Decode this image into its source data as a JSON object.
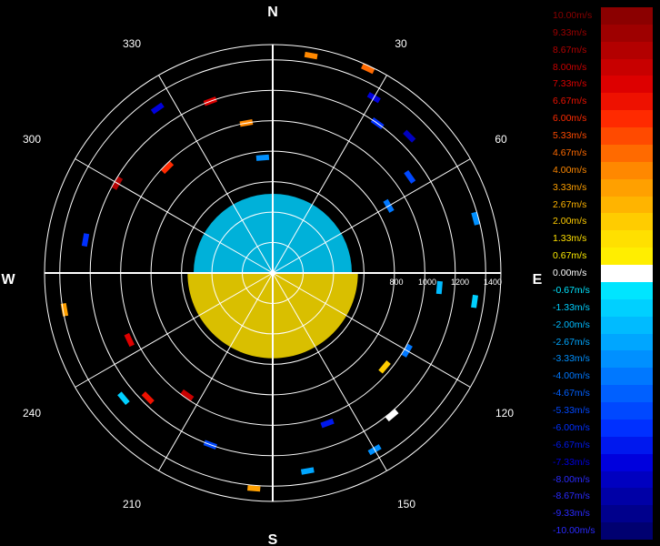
{
  "chart_data": {
    "type": "polar-ppi",
    "title": "",
    "compass_labels": {
      "north": "N",
      "south": "S",
      "east": "E",
      "west": "W"
    },
    "angle_labels": [
      "30",
      "60",
      "120",
      "150",
      "210",
      "240",
      "300",
      "330"
    ],
    "range_ticks": [
      "800",
      "1000",
      "1200",
      "1400"
    ],
    "range_max": 1500,
    "range_ring_step": 200,
    "legend": {
      "labels": [
        "10.00m/s",
        "9.33m/s",
        "8.67m/s",
        "8.00m/s",
        "7.33m/s",
        "6.67m/s",
        "6.00m/s",
        "5.33m/s",
        "4.67m/s",
        "4.00m/s",
        "3.33m/s",
        "2.67m/s",
        "2.00m/s",
        "1.33m/s",
        "0.67m/s",
        "0.00m/s",
        "-0.67m/s",
        "-1.33m/s",
        "-2.00m/s",
        "-2.67m/s",
        "-3.33m/s",
        "-4.00m/s",
        "-4.67m/s",
        "-5.33m/s",
        "-6.00m/s",
        "-6.67m/s",
        "-7.33m/s",
        "-8.00m/s",
        "-8.67m/s",
        "-9.33m/s",
        "-10.00m/s"
      ],
      "values": [
        10.0,
        9.33,
        8.67,
        8.0,
        7.33,
        6.67,
        6.0,
        5.33,
        4.67,
        4.0,
        3.33,
        2.67,
        2.0,
        1.33,
        0.67,
        0.0,
        -0.67,
        -1.33,
        -2.0,
        -2.67,
        -3.33,
        -4.0,
        -4.67,
        -5.33,
        -6.0,
        -6.67,
        -7.33,
        -8.0,
        -8.67,
        -9.33,
        -10.0
      ],
      "colors": [
        "#8b0000",
        "#9e0000",
        "#b30000",
        "#c80000",
        "#dd0000",
        "#ee1100",
        "#ff2a00",
        "#ff4a00",
        "#ff6a00",
        "#ff8800",
        "#ffa000",
        "#ffb400",
        "#ffcc00",
        "#ffe000",
        "#ffee00",
        "#ffffff",
        "#00e5ff",
        "#00d0ff",
        "#00bbff",
        "#00a6ff",
        "#0090ff",
        "#0078ff",
        "#0060ff",
        "#0048ff",
        "#0030ff",
        "#0018ee",
        "#0000dd",
        "#0000c0",
        "#0000a6",
        "#00008c",
        "#000070"
      ]
    },
    "velocity_field": {
      "unit": "m/s",
      "near_field": [
        {
          "az_from": 270,
          "az_to": 450,
          "range_from": 0,
          "range_to": 520,
          "velocity": -1.33
        },
        {
          "az_from": 90,
          "az_to": 270,
          "range_from": 0,
          "range_to": 560,
          "velocity": 1.33
        }
      ],
      "gates": [
        {
          "az": 10,
          "range": 1450,
          "velocity": 4.0
        },
        {
          "az": 25,
          "range": 1480,
          "velocity": 4.67
        },
        {
          "az": 30,
          "range": 1330,
          "velocity": -7.33
        },
        {
          "az": 35,
          "range": 1200,
          "velocity": -6.0
        },
        {
          "az": 45,
          "range": 1270,
          "velocity": -8.0
        },
        {
          "az": 55,
          "range": 1100,
          "velocity": -5.33
        },
        {
          "az": 60,
          "range": 880,
          "velocity": -4.0
        },
        {
          "az": 75,
          "range": 1380,
          "velocity": -3.33
        },
        {
          "az": 95,
          "range": 1100,
          "velocity": -2.0
        },
        {
          "az": 98,
          "range": 1340,
          "velocity": -1.33
        },
        {
          "az": 120,
          "range": 1020,
          "velocity": -4.0
        },
        {
          "az": 130,
          "range": 960,
          "velocity": 2.0
        },
        {
          "az": 140,
          "range": 1220,
          "velocity": 0.0
        },
        {
          "az": 150,
          "range": 1340,
          "velocity": -3.33
        },
        {
          "az": 160,
          "range": 1050,
          "velocity": -6.67
        },
        {
          "az": 170,
          "range": 1320,
          "velocity": -2.67
        },
        {
          "az": 185,
          "range": 1420,
          "velocity": 3.33
        },
        {
          "az": 200,
          "range": 1200,
          "velocity": -5.33
        },
        {
          "az": 215,
          "range": 980,
          "velocity": 8.0
        },
        {
          "az": 225,
          "range": 1160,
          "velocity": 6.67
        },
        {
          "az": 230,
          "range": 1280,
          "velocity": -1.33
        },
        {
          "az": 245,
          "range": 1040,
          "velocity": 7.33
        },
        {
          "az": 260,
          "range": 1390,
          "velocity": 3.33
        },
        {
          "az": 280,
          "range": 1250,
          "velocity": -6.0
        },
        {
          "az": 300,
          "range": 1180,
          "velocity": 8.67
        },
        {
          "az": 315,
          "range": 980,
          "velocity": 6.0
        },
        {
          "az": 325,
          "range": 1320,
          "velocity": -7.33
        },
        {
          "az": 340,
          "range": 1200,
          "velocity": 7.33
        },
        {
          "az": 350,
          "range": 1000,
          "velocity": 4.0
        },
        {
          "az": 355,
          "range": 760,
          "velocity": -3.33
        }
      ]
    }
  }
}
